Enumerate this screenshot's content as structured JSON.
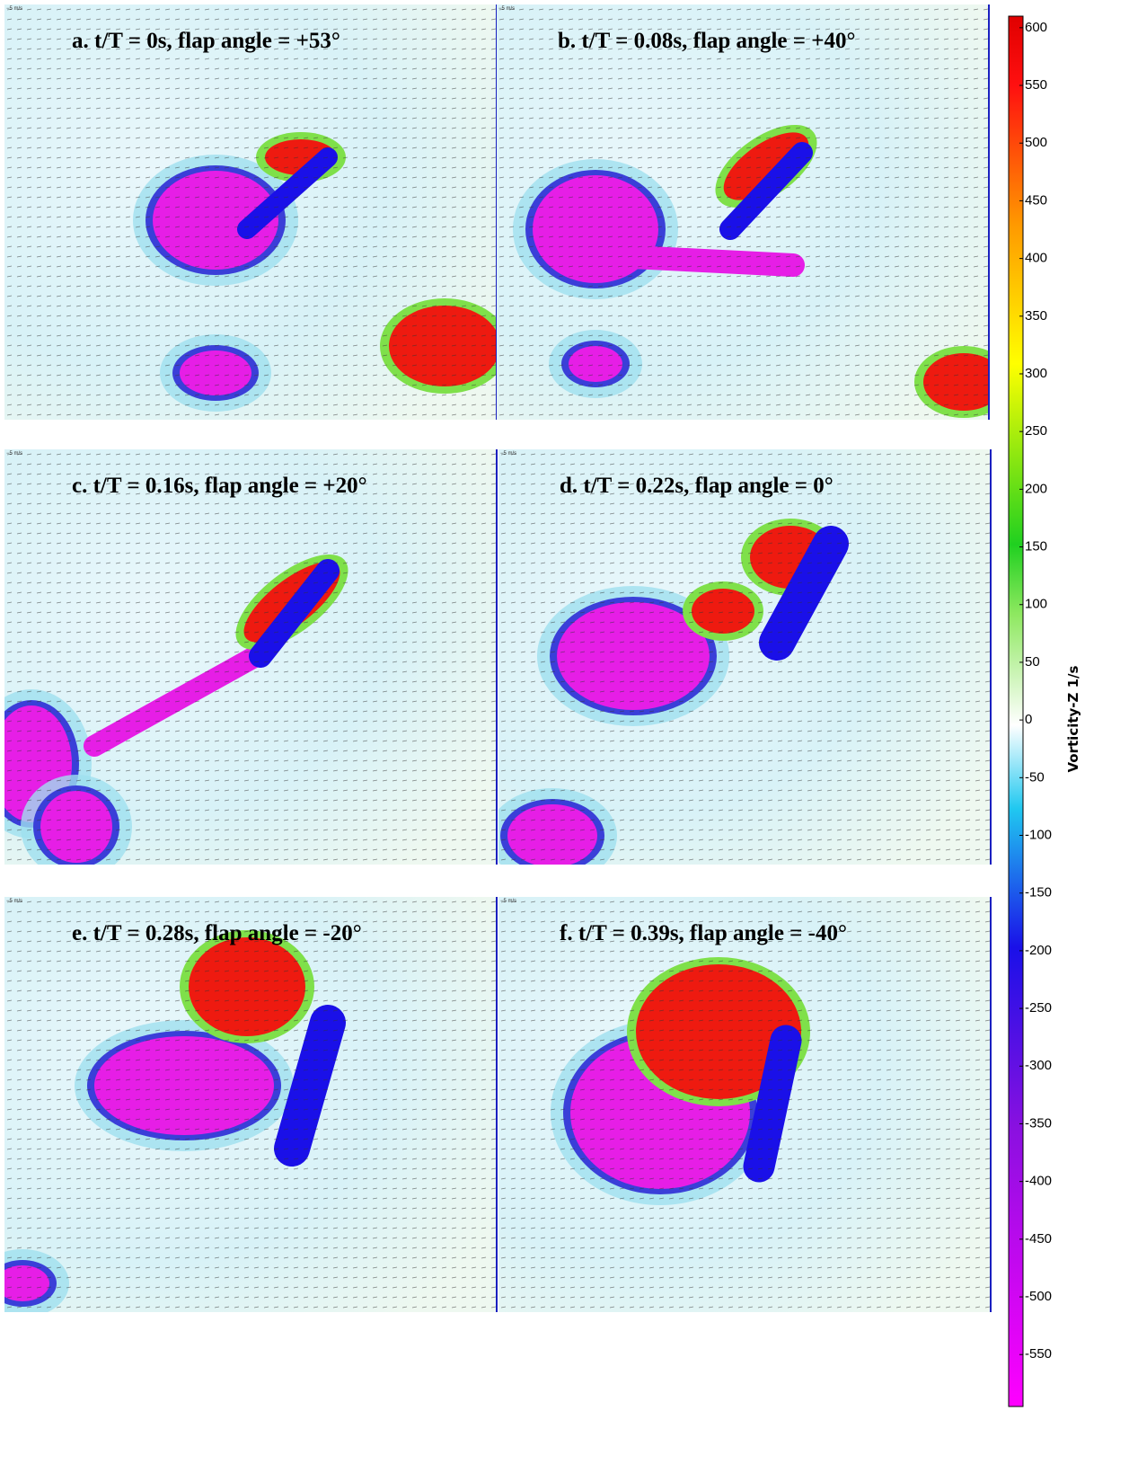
{
  "panels": [
    {
      "title": "a. t/T = 0s, flap angle = +53°",
      "scale_label": "−5 m/s"
    },
    {
      "title": "b. t/T = 0.08s, flap angle = +40°",
      "scale_label": "−5 m/s"
    },
    {
      "title": "c. t/T = 0.16s, flap angle = +20°",
      "scale_label": "−5 m/s"
    },
    {
      "title": "d. t/T = 0.22s, flap angle = 0°",
      "scale_label": "−5 m/s"
    },
    {
      "title": "e. t/T = 0.28s, flap angle = -20°",
      "scale_label": "−5 m/s"
    },
    {
      "title": "f. t/T = 0.39s, flap angle = -40°",
      "scale_label": "−5 m/s"
    }
  ],
  "colorbar": {
    "label": "Vorticity-Z 1/s",
    "lim": [
      -595,
      610
    ],
    "ticks": [
      600,
      550,
      500,
      450,
      400,
      350,
      300,
      250,
      200,
      150,
      100,
      50,
      0,
      -50,
      -100,
      -150,
      -200,
      -250,
      -300,
      -350,
      -400,
      -450,
      -500,
      -550
    ]
  }
}
